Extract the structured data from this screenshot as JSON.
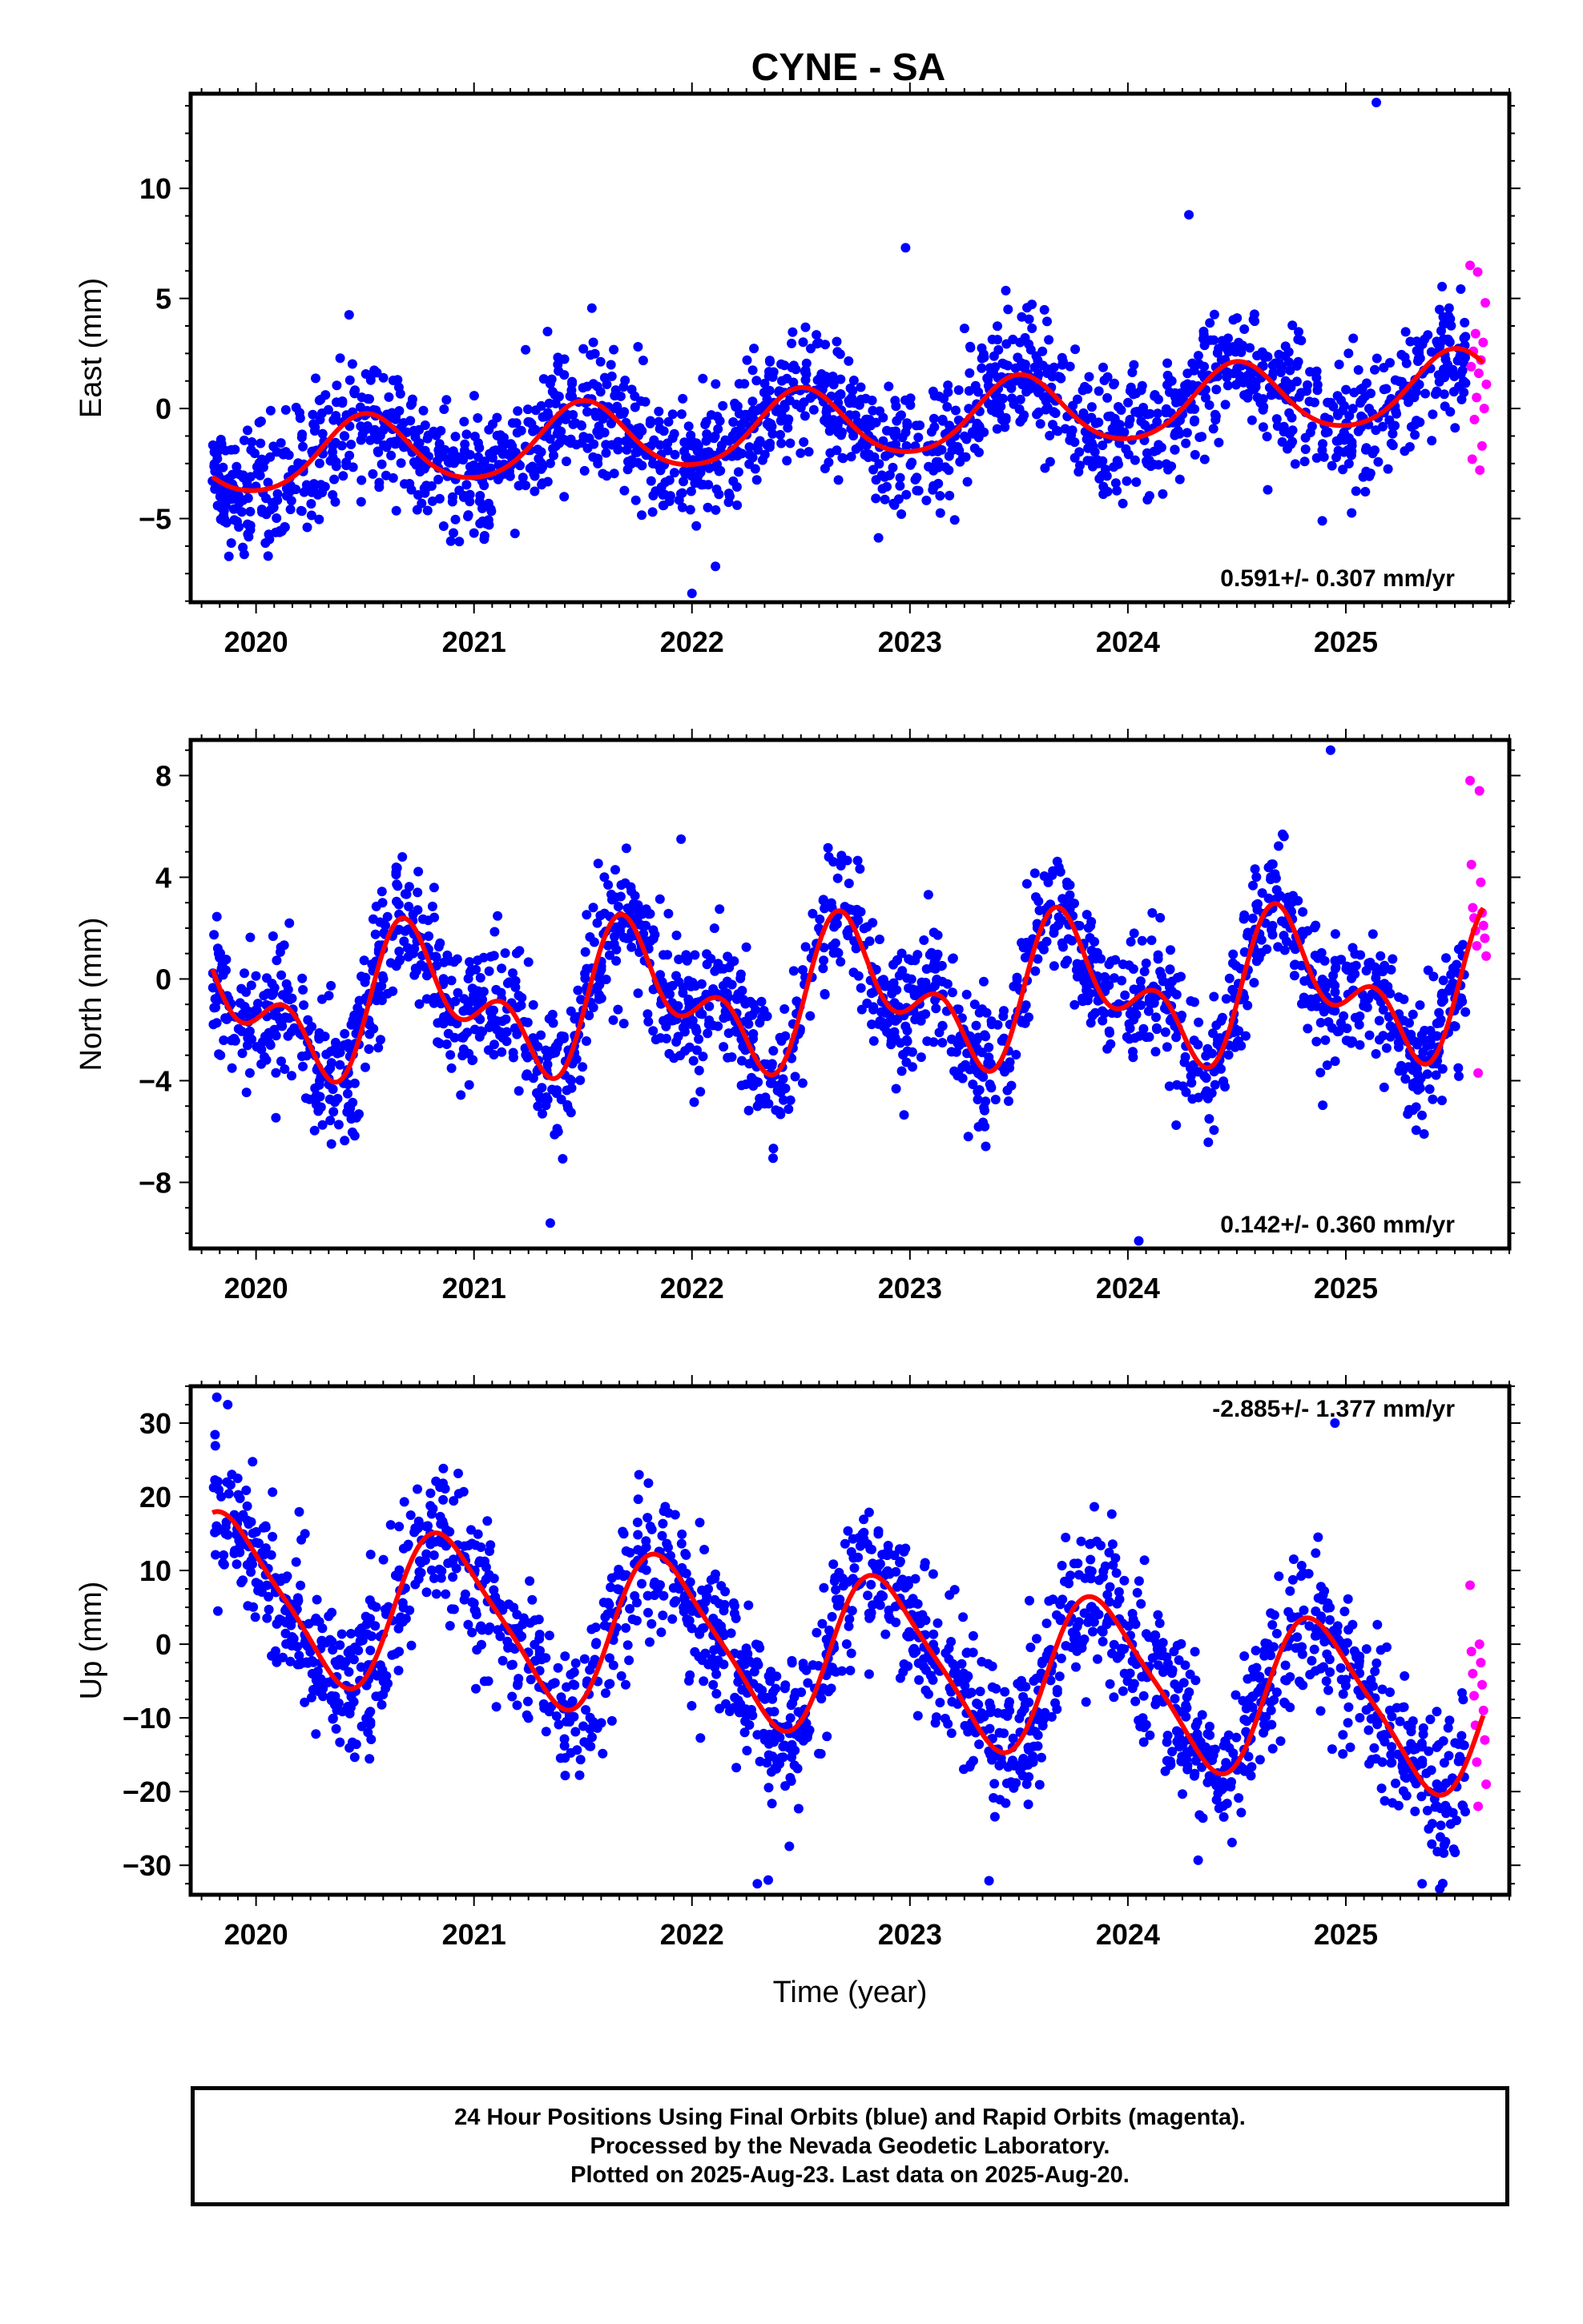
{
  "figure": {
    "title": "CYNE - SA",
    "caption": [
      "24 Hour Positions Using Final Orbits (blue) and Rapid Orbits (magenta).",
      "Processed by the Nevada Geodetic Laboratory.",
      "Plotted on 2025-Aug-23. Last data on 2025-Aug-20."
    ]
  },
  "colors": {
    "final_orbits": "#0000ff",
    "rapid_orbits": "#ff00ff",
    "model_fit": "#ff0000",
    "frame": "#000000"
  },
  "chart_data": [
    {
      "type": "scatter",
      "component": "east",
      "ylabel": "East (mm)",
      "xlabel": "",
      "xlim": [
        2019.7,
        2025.75
      ],
      "ylim": [
        -8.8,
        14.3
      ],
      "x_ticks": [
        2020,
        2021,
        2022,
        2023,
        2024,
        2025
      ],
      "x_tick_labels": [
        "2020",
        "2021",
        "2022",
        "2023",
        "2024",
        "2025"
      ],
      "y_ticks": [
        -5,
        0,
        5,
        10
      ],
      "y_tick_labels": [
        "−5",
        "0",
        "5",
        "10"
      ],
      "rate_text": "0.591+/- 0.307 mm/yr",
      "rate_position": "bottom-right",
      "model": {
        "offset": -0.7,
        "rate": 0.591,
        "ref_year": 2022.75,
        "annual_amp": 1.6,
        "annual_peak": 2022.5,
        "semiannual_amp": 0.2,
        "semiannual_peak": 2022.5
      },
      "scatter_sd": 1.45,
      "outliers": [
        [
          2025.14,
          13.9
        ],
        [
          2024.28,
          8.8
        ],
        [
          2022.98,
          7.3
        ],
        [
          2022.0,
          -8.4
        ]
      ],
      "rapid_values": [
        6.5,
        6.2,
        4.8,
        3.4,
        3.0,
        2.6,
        2.2,
        1.9,
        1.6,
        1.1,
        0.5,
        0.0,
        -0.5,
        -1.7,
        -2.3,
        -2.8
      ],
      "series": [
        {
          "name": "Final Orbits (blue)",
          "start": 2019.8,
          "end": 2025.55
        },
        {
          "name": "Rapid Orbits (magenta)",
          "start": 2025.55,
          "end": 2025.63
        }
      ]
    },
    {
      "type": "scatter",
      "component": "north",
      "ylabel": "North (mm)",
      "xlabel": "",
      "xlim": [
        2019.7,
        2025.75
      ],
      "ylim": [
        -10.6,
        9.4
      ],
      "x_ticks": [
        2020,
        2021,
        2022,
        2023,
        2024,
        2025
      ],
      "x_tick_labels": [
        "2020",
        "2021",
        "2022",
        "2023",
        "2024",
        "2025"
      ],
      "y_ticks": [
        -8,
        -4,
        0,
        4,
        8
      ],
      "y_tick_labels": [
        "−8",
        "−4",
        "0",
        "4",
        "8"
      ],
      "rate_text": "0.142+/- 0.360 mm/yr",
      "rate_position": "bottom-right",
      "model": {
        "offset": -0.7,
        "rate": 0.142,
        "ref_year": 2022.75,
        "annual_amp": 2.1,
        "annual_peak": 2022.75,
        "semiannual_amp": 1.6,
        "semiannual_peak": 2022.65
      },
      "scatter_sd": 1.35,
      "outliers": [
        [
          2024.05,
          -10.3
        ],
        [
          2021.35,
          -9.6
        ],
        [
          2024.93,
          9.0
        ],
        [
          2021.95,
          5.5
        ]
      ],
      "rapid_values": [
        7.8,
        7.4,
        4.5,
        3.8,
        2.8,
        2.6,
        2.4,
        2.1,
        1.9,
        1.6,
        1.3,
        0.9,
        -3.7
      ],
      "series": [
        {
          "name": "Final Orbits (blue)",
          "start": 2019.8,
          "end": 2025.55
        },
        {
          "name": "Rapid Orbits (magenta)",
          "start": 2025.55,
          "end": 2025.63
        }
      ]
    },
    {
      "type": "scatter",
      "component": "up",
      "ylabel": "Up (mm)",
      "xlabel": "Time (year)",
      "xlim": [
        2019.7,
        2025.75
      ],
      "ylim": [
        -34,
        35
      ],
      "x_ticks": [
        2020,
        2021,
        2022,
        2023,
        2024,
        2025
      ],
      "x_tick_labels": [
        "2020",
        "2021",
        "2022",
        "2023",
        "2024",
        "2025"
      ],
      "y_ticks": [
        -30,
        -20,
        -10,
        0,
        10,
        20,
        30
      ],
      "y_tick_labels": [
        "−30",
        "−20",
        "−10",
        "0",
        "10",
        "20",
        "30"
      ],
      "rate_text": "-2.885+/- 1.377 mm/yr",
      "rate_position": "top-right",
      "model": {
        "offset": -1.5,
        "rate": -2.885,
        "ref_year": 2022.75,
        "annual_amp": 10.5,
        "annual_peak": 2022.88,
        "semiannual_amp": 2.0,
        "semiannual_peak": 2022.75
      },
      "scatter_sd": 5.2,
      "outliers": [
        [
          2019.82,
          33.5
        ],
        [
          2019.87,
          32.5
        ],
        [
          2024.95,
          30.0
        ],
        [
          2022.3,
          -32.5
        ],
        [
          2022.35,
          -32.0
        ],
        [
          2025.35,
          -32.5
        ]
      ],
      "rapid_values": [
        8.0,
        0.0,
        -1.0,
        -2.5,
        -4.0,
        -5.5,
        -7.0,
        -9.0,
        -11.0,
        -13.0,
        -16.0,
        -19.0,
        -22.0
      ],
      "series": [
        {
          "name": "Final Orbits (blue)",
          "start": 2019.8,
          "end": 2025.55
        },
        {
          "name": "Rapid Orbits (magenta)",
          "start": 2025.55,
          "end": 2025.63
        }
      ]
    }
  ]
}
